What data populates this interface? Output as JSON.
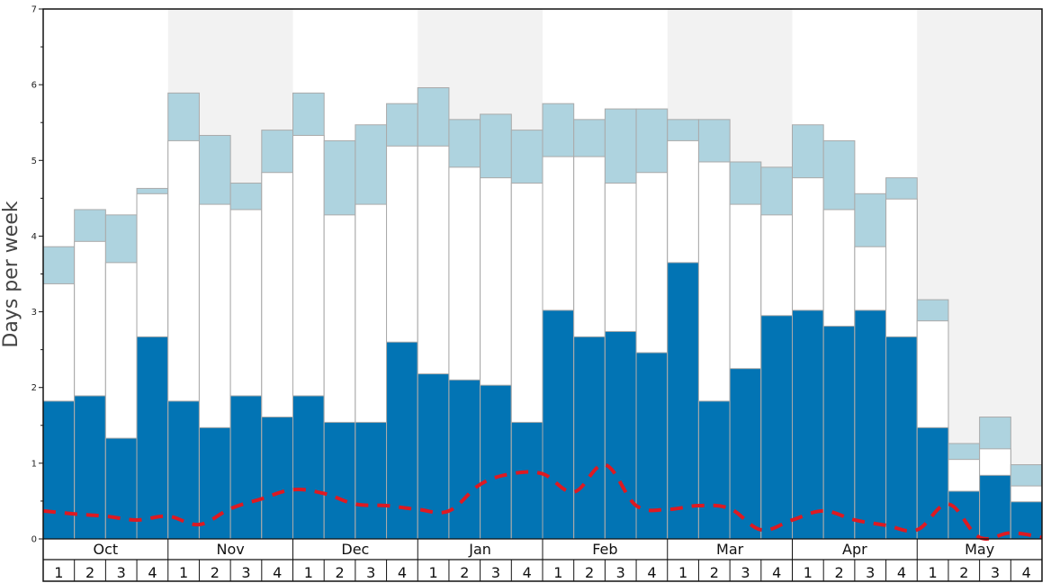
{
  "chart_data": {
    "type": "bar",
    "stacked": true,
    "title": "",
    "ylabel": "Days per week",
    "ylim": [
      0,
      7
    ],
    "yticks": [
      0,
      1,
      2,
      3,
      4,
      5,
      6,
      7
    ],
    "grid": false,
    "months": [
      "Oct",
      "Nov",
      "Dec",
      "Jan",
      "Feb",
      "Mar",
      "Apr",
      "May"
    ],
    "weeks": [
      "1",
      "2",
      "3",
      "4"
    ],
    "alt_band_months": [
      "Nov",
      "Jan",
      "Mar",
      "May"
    ],
    "colors": {
      "bottom": "#0274b4",
      "middle": "#ffffff",
      "top": "#aed3df",
      "edge": "#aaaaaa",
      "dashed_line": "#dd1a22",
      "band": "#f2f2f2"
    },
    "series_totals": {
      "bottom": [
        1.82,
        1.89,
        1.33,
        2.67,
        1.82,
        1.47,
        1.89,
        1.61,
        1.89,
        1.54,
        1.54,
        2.6,
        2.18,
        2.1,
        2.03,
        1.54,
        3.02,
        2.67,
        2.74,
        2.46,
        3.65,
        1.82,
        2.25,
        2.95,
        3.02,
        2.81,
        3.02,
        2.67,
        1.47,
        0.63,
        0.84,
        0.49
      ],
      "middle": [
        3.37,
        3.93,
        3.65,
        4.56,
        5.26,
        4.42,
        4.35,
        4.84,
        5.33,
        4.28,
        4.42,
        5.19,
        5.19,
        4.91,
        4.77,
        4.7,
        5.05,
        5.05,
        4.7,
        4.84,
        5.26,
        4.98,
        4.42,
        4.28,
        4.77,
        4.35,
        3.86,
        4.49,
        2.88,
        1.05,
        1.19,
        0.7
      ],
      "top": [
        3.86,
        4.35,
        4.28,
        4.63,
        5.89,
        5.33,
        4.7,
        5.4,
        5.89,
        5.26,
        5.47,
        5.75,
        5.96,
        5.54,
        5.61,
        5.4,
        5.75,
        5.54,
        5.68,
        5.68,
        5.54,
        5.54,
        4.98,
        4.91,
        5.47,
        5.26,
        4.56,
        4.77,
        3.16,
        1.26,
        1.61,
        0.98
      ]
    },
    "dashed_line": [
      0.37,
      0.33,
      0.3,
      0.25,
      0.3,
      0.19,
      0.4,
      0.53,
      0.65,
      0.6,
      0.46,
      0.44,
      0.39,
      0.37,
      0.72,
      0.86,
      0.86,
      0.62,
      0.98,
      0.44,
      0.39,
      0.44,
      0.4,
      0.12,
      0.25,
      0.37,
      0.25,
      0.18,
      0.12,
      0.46,
      0.02,
      0.08
    ]
  }
}
